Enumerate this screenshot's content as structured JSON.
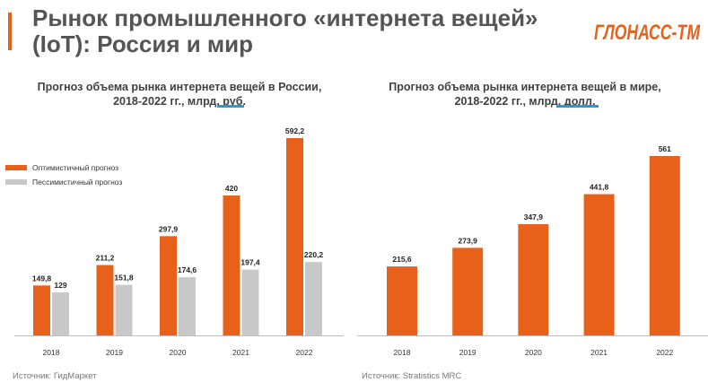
{
  "header": {
    "title": "Рынок промышленного «интернета вещей» (IoT): Россия и мир",
    "logo_text": "ГЛОНАСС-ТМ"
  },
  "colors": {
    "accent": "#e8611a",
    "optimistic": "#e8611a",
    "pessimistic": "#c8c8c8",
    "underline": "#1f9ce0"
  },
  "chart_data": [
    {
      "type": "bar",
      "title_line1": "Прогноз объема рынка интернета вещей в России,",
      "title_line2": "2018-2022 гг., млрд. руб.",
      "categories": [
        "2018",
        "2019",
        "2020",
        "2021",
        "2022"
      ],
      "series": [
        {
          "name": "Оптимистичный прогноз",
          "values": [
            149.8,
            211.2,
            297.9,
            420,
            592.2
          ],
          "labels": [
            "149,8",
            "211,2",
            "297,9",
            "420",
            "592,2"
          ]
        },
        {
          "name": "Пессимистичный прогноз",
          "values": [
            129,
            151.8,
            174.6,
            197.4,
            220.2
          ],
          "labels": [
            "129",
            "151,8",
            "174,6",
            "197,4",
            "220,2"
          ]
        }
      ],
      "ylim": [
        0,
        592.2
      ],
      "legend": "left",
      "grid": false,
      "source": "Источник: ГидМаркет"
    },
    {
      "type": "bar",
      "title_line1": "Прогноз объема рынка интернета вещей в мире,",
      "title_line2": "2018-2022 гг., млрд. долл.",
      "categories": [
        "2018",
        "2019",
        "2020",
        "2021",
        "2022"
      ],
      "series": [
        {
          "values": [
            215.6,
            273.9,
            347.9,
            441.8,
            561
          ],
          "labels": [
            "215,6",
            "273,9",
            "347,9",
            "441,8",
            "561"
          ]
        }
      ],
      "ylim": [
        0,
        561
      ],
      "grid": false,
      "source": "Источник: Stratistics MRC"
    }
  ]
}
